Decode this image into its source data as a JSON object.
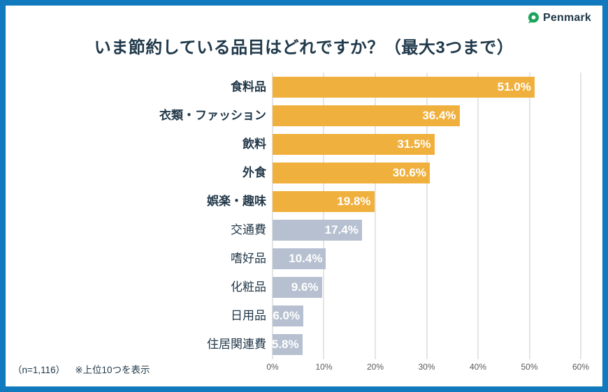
{
  "logo": {
    "text": "Penmark",
    "icon_color": "#1CA45C"
  },
  "title": "いま節約している品目はどれですか？（最大3つまで）",
  "footnote": {
    "sample": "（n=1,116）",
    "note": "※上位10つを表示"
  },
  "colors": {
    "frame_border": "#117ABF",
    "bar_highlight": "#F0B03D",
    "bar_normal": "#B6C0D0",
    "title_text": "#20394A",
    "gridline": "#CBCBCB",
    "axis_text": "#57595B",
    "value_text": "#FFFFFF"
  },
  "chart_data": {
    "type": "bar",
    "orientation": "horizontal",
    "title": "いま節約している品目はどれですか？（最大3つまで）",
    "categories": [
      "食料品",
      "衣類・ファッション",
      "飲料",
      "外食",
      "娯楽・趣味",
      "交通費",
      "嗜好品",
      "化粧品",
      "日用品",
      "住居関連費"
    ],
    "values": [
      51.0,
      36.4,
      31.5,
      30.6,
      19.8,
      17.4,
      10.4,
      9.6,
      6.0,
      5.8
    ],
    "value_labels": [
      "51.0%",
      "36.4%",
      "31.5%",
      "30.6%",
      "19.8%",
      "17.4%",
      "10.4%",
      "9.6%",
      "6.0%",
      "5.8%"
    ],
    "highlight_count": 5,
    "xlabel": "",
    "ylabel": "",
    "xlim": [
      0,
      60
    ],
    "x_ticks": [
      "0%",
      "10%",
      "20%",
      "30%",
      "40%",
      "50%",
      "60%"
    ],
    "grid": true,
    "legend_position": "none",
    "sample_size": "n=1,116"
  }
}
